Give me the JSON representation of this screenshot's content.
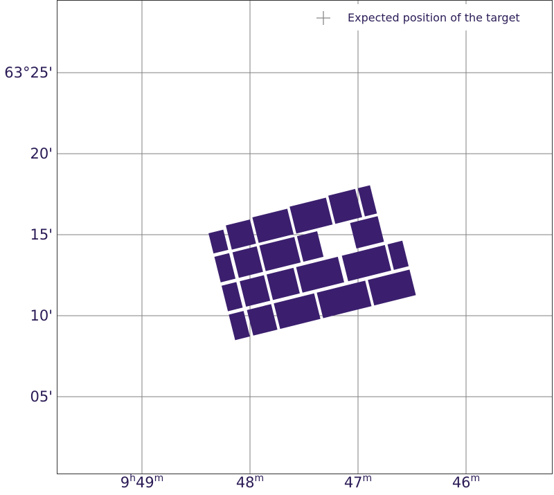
{
  "chart_data": {
    "type": "image",
    "projection": "sky (RA / Dec)",
    "x_axis": {
      "ticks": [
        {
          "pre": "9",
          "h": "h",
          "val": "49",
          "unit": "m",
          "minutes": 49
        },
        {
          "pre": "",
          "h": "",
          "val": "48",
          "unit": "m",
          "minutes": 48
        },
        {
          "pre": "",
          "h": "",
          "val": "47",
          "unit": "m",
          "minutes": 47
        },
        {
          "pre": "",
          "h": "",
          "val": "46",
          "unit": "m",
          "minutes": 46
        }
      ]
    },
    "y_axis": {
      "ticks": [
        {
          "label": "63°25'",
          "arcmin": 25
        },
        {
          "label": "20'",
          "arcmin": 20
        },
        {
          "label": "15'",
          "arcmin": 15
        },
        {
          "label": "10'",
          "arcmin": 10
        },
        {
          "label": "05'",
          "arcmin": 5
        }
      ]
    },
    "grid": true,
    "legend": {
      "placement": "top-right",
      "entries": [
        {
          "marker": "plus",
          "label": "Expected position of the target"
        }
      ]
    },
    "image_color": "#3b1f6e",
    "grid_color": "#7f7f7f"
  }
}
